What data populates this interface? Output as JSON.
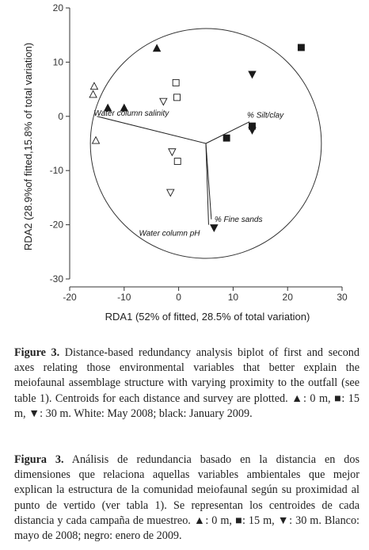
{
  "chart_data": {
    "type": "scatter",
    "xlabel": "RDA1 (52% of fitted, 28.5% of total variation)",
    "ylabel": "RDA2 (28.9%of fitted,15.8% of total variation)",
    "xlim": [
      -20,
      30
    ],
    "ylim": [
      -30,
      20
    ],
    "xticks": [
      "-20",
      "-10",
      "0",
      "10",
      "20",
      "30"
    ],
    "yticks": [
      "20",
      "10",
      "0",
      "-10",
      "-20",
      "-30"
    ],
    "vector_origin": [
      5,
      -5
    ],
    "correlation_circle": {
      "center": [
        5,
        -5
      ],
      "radius": 21.2
    },
    "vectors": [
      {
        "label": "% Silt/clay",
        "end": [
          13,
          -1
        ]
      },
      {
        "label": "Water column salinity",
        "end": [
          -15,
          0
        ]
      },
      {
        "label": "Water column pH",
        "end": [
          5.5,
          -20
        ]
      },
      {
        "label": "% Fine sands",
        "end": [
          6,
          -19
        ]
      }
    ],
    "series": [
      {
        "distance": "0 m",
        "campaign": "May 2008",
        "marker": "triangle-up",
        "filled": false,
        "points": [
          [
            -15.5,
            5.5
          ],
          [
            -15.7,
            4
          ],
          [
            -15.2,
            -4.5
          ]
        ]
      },
      {
        "distance": "0 m",
        "campaign": "January 2009",
        "marker": "triangle-up",
        "filled": true,
        "points": [
          [
            -4,
            12.5
          ],
          [
            -13,
            1.5
          ],
          [
            -10,
            1.5
          ]
        ]
      },
      {
        "distance": "15 m",
        "campaign": "May 2008",
        "marker": "square",
        "filled": false,
        "points": [
          [
            -0.5,
            6.2
          ],
          [
            -0.3,
            3.5
          ],
          [
            -0.2,
            -8.3
          ]
        ]
      },
      {
        "distance": "15 m",
        "campaign": "January 2009",
        "marker": "square",
        "filled": true,
        "points": [
          [
            22.5,
            12.7
          ],
          [
            8.8,
            -4
          ],
          [
            13.5,
            -1.8
          ]
        ]
      },
      {
        "distance": "30 m",
        "campaign": "May 2008",
        "marker": "triangle-down",
        "filled": false,
        "points": [
          [
            -2.8,
            2.8
          ],
          [
            -1.2,
            -6.5
          ],
          [
            -1.5,
            -14
          ]
        ]
      },
      {
        "distance": "30 m",
        "campaign": "January 2009",
        "marker": "triangle-down",
        "filled": true,
        "points": [
          [
            13.5,
            7.8
          ],
          [
            13.5,
            -2.5
          ],
          [
            6.5,
            -20.5
          ]
        ]
      }
    ]
  },
  "caption_en": {
    "label": "Figure 3.",
    "text": " Distance-based redundancy analysis biplot of first and second axes relating those environmental variables that better explain the meiofaunal assemblage structure with varying proximity to the outfall (see table 1). Centroids for each distance and survey are plotted. ▲: 0 m, ■: 15 m, ▼: 30 m. White: May 2008; black: January 2009."
  },
  "caption_es": {
    "label": "Figura 3.",
    "text": " Análisis de redundancia basado en la distancia en dos dimensiones que relaciona aquellas variables ambientales que mejor explican la estructura de la comunidad meiofaunal según su proximidad al punto de vertido (ver tabla 1). Se representan los centroides de cada distancia y cada campaña de muestreo. ▲: 0 m, ■: 15 m, ▼: 30 m. Blanco: mayo de 2008; negro: enero de 2009."
  }
}
